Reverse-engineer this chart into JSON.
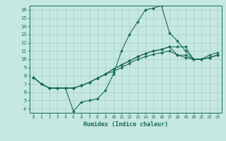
{
  "xlabel": "Humidex (Indice chaleur)",
  "bg_color": "#c5e8e0",
  "grid_color": "#a8d0c8",
  "line_color": "#1a6b5a",
  "xlim": [
    -0.5,
    23.5
  ],
  "ylim": [
    3.5,
    16.5
  ],
  "xticks": [
    0,
    1,
    2,
    3,
    4,
    5,
    6,
    7,
    8,
    9,
    10,
    11,
    12,
    13,
    14,
    15,
    16,
    17,
    18,
    19,
    20,
    21,
    22,
    23
  ],
  "yticks": [
    4,
    5,
    6,
    7,
    8,
    9,
    10,
    11,
    12,
    13,
    14,
    15,
    16
  ],
  "series": [
    [
      7.8,
      7.0,
      6.5,
      6.5,
      6.5,
      3.7,
      4.8,
      5.0,
      5.2,
      6.2,
      8.2,
      11.0,
      13.0,
      14.5,
      16.0,
      16.2,
      16.5,
      13.2,
      12.2,
      11.0,
      10.0,
      10.0,
      10.5,
      10.8
    ],
    [
      7.8,
      7.0,
      6.5,
      6.5,
      6.5,
      6.5,
      6.8,
      7.2,
      7.7,
      8.2,
      8.8,
      9.3,
      9.8,
      10.3,
      10.7,
      11.0,
      11.2,
      11.5,
      11.5,
      11.5,
      10.0,
      10.0,
      10.2,
      10.5
    ],
    [
      7.8,
      7.0,
      6.5,
      6.5,
      6.5,
      6.5,
      6.8,
      7.2,
      7.7,
      8.2,
      8.8,
      9.3,
      9.8,
      10.3,
      10.7,
      11.0,
      11.2,
      11.5,
      10.5,
      10.5,
      10.0,
      10.0,
      10.2,
      10.5
    ],
    [
      7.8,
      7.0,
      6.5,
      6.5,
      6.5,
      6.5,
      6.8,
      7.2,
      7.7,
      8.2,
      8.5,
      9.0,
      9.5,
      10.0,
      10.3,
      10.6,
      10.8,
      11.0,
      10.5,
      10.2,
      10.0,
      10.0,
      10.2,
      10.5
    ]
  ]
}
